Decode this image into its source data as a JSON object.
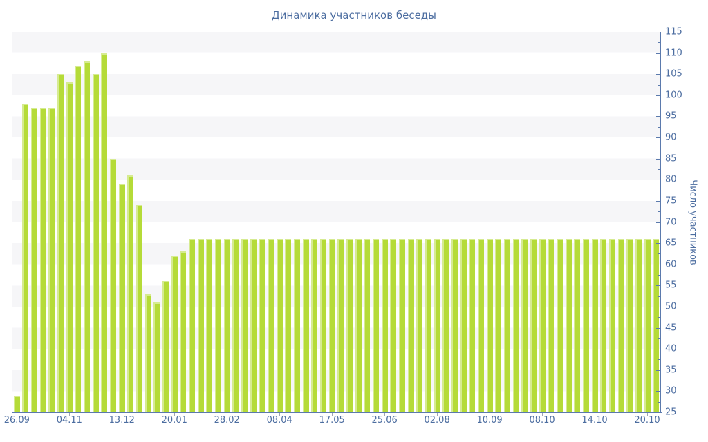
{
  "title": "Динамика участников беседы",
  "colors": {
    "bar": "#b5db38",
    "bar_highlight": "rgba(255,255,255,0.45)",
    "axis_line": "#5b7aad",
    "text": "#4c6da0",
    "stripe": "#f6f6f8",
    "background": "#ffffff",
    "x_tick_mark": "#a0a6b2"
  },
  "chart_data": {
    "type": "bar",
    "title": "Динамика участников беседы",
    "xlabel": "",
    "ylabel": "Число участников",
    "ylim": [
      25,
      115
    ],
    "y_major_step": 5,
    "y_minor_step": 2.5,
    "grid": "horizontal striped bands every 5 units, alternating gray/white",
    "legend": "none",
    "y_axis_side": "right",
    "bar_count": 74,
    "values": [
      29,
      98,
      97,
      97,
      97,
      105,
      103,
      107,
      108,
      105,
      110,
      85,
      79,
      81,
      74,
      53,
      51,
      56,
      62,
      63,
      66,
      66,
      66,
      66,
      66,
      66,
      66,
      66,
      66,
      66,
      66,
      66,
      66,
      66,
      66,
      66,
      66,
      66,
      66,
      66,
      66,
      66,
      66,
      66,
      66,
      66,
      66,
      66,
      66,
      66,
      66,
      66,
      66,
      66,
      66,
      66,
      66,
      66,
      66,
      66,
      66,
      66,
      66,
      66,
      66,
      66,
      66,
      66,
      66,
      66,
      66,
      66,
      66,
      66
    ],
    "y_tick_labels": [
      "25",
      "30",
      "35",
      "40",
      "45",
      "50",
      "55",
      "60",
      "65",
      "70",
      "75",
      "80",
      "85",
      "90",
      "95",
      "100",
      "105",
      "110",
      "115"
    ],
    "x_ticks": [
      {
        "label": "26.09",
        "bar_index": 0
      },
      {
        "label": "04.11",
        "bar_index": 6
      },
      {
        "label": "13.12",
        "bar_index": 12
      },
      {
        "label": "20.01",
        "bar_index": 18
      },
      {
        "label": "28.02",
        "bar_index": 24
      },
      {
        "label": "08.04",
        "bar_index": 30
      },
      {
        "label": "17.05",
        "bar_index": 36
      },
      {
        "label": "25.06",
        "bar_index": 42
      },
      {
        "label": "02.08",
        "bar_index": 48
      },
      {
        "label": "10.09",
        "bar_index": 54
      },
      {
        "label": "08.10",
        "bar_index": 60
      },
      {
        "label": "14.10",
        "bar_index": 66
      },
      {
        "label": "20.10",
        "bar_index": 72
      }
    ]
  }
}
